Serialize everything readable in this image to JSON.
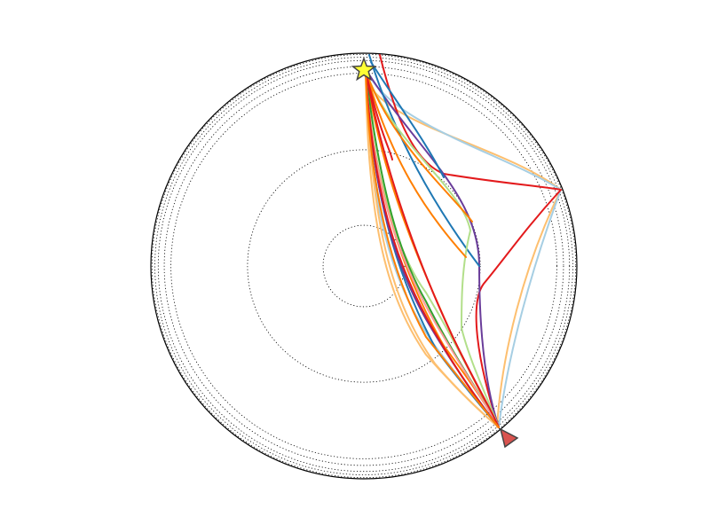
{
  "diagram": {
    "kind": "seismic ray paths through earth cross-section",
    "earth_radius_km": 6371,
    "boundaries": [
      {
        "name": "surface",
        "radius_km": 6371,
        "style": "solid",
        "color": "#000000"
      },
      {
        "name": "crust-mantle-1",
        "radius_km": 6336,
        "style": "dotted",
        "color": "#000000"
      },
      {
        "name": "layer-2",
        "radius_km": 6251,
        "style": "dotted",
        "color": "#000000"
      },
      {
        "name": "layer-3",
        "radius_km": 6151,
        "style": "dotted",
        "color": "#000000"
      },
      {
        "name": "layer-4",
        "radius_km": 5971,
        "style": "dotted",
        "color": "#000000"
      },
      {
        "name": "layer-5",
        "radius_km": 5771,
        "style": "dotted",
        "color": "#000000"
      },
      {
        "name": "core-mantle",
        "radius_km": 3480,
        "style": "dotted",
        "color": "#000000"
      },
      {
        "name": "inner-core",
        "radius_km": 1220,
        "style": "dotted",
        "color": "#000000"
      }
    ],
    "source": {
      "symbol": "star-icon",
      "fill": "#ffff33",
      "stroke": "#444444",
      "angle_deg": 0,
      "depth_km": 200
    },
    "receivers": [
      {
        "symbol": "triangle-icon",
        "fill": "#d9534f",
        "stroke": "#444444",
        "angle_deg": 150
      }
    ],
    "ray_colors": {
      "light_blue": "#a6cee3",
      "blue": "#1f78b4",
      "light_green": "#b2df8a",
      "green": "#33a02c",
      "light_red": "#fb9a99",
      "red": "#e31a1c",
      "light_orange": "#fdbf6f",
      "orange": "#ff7f00",
      "purple": "#6a3d9a"
    }
  }
}
